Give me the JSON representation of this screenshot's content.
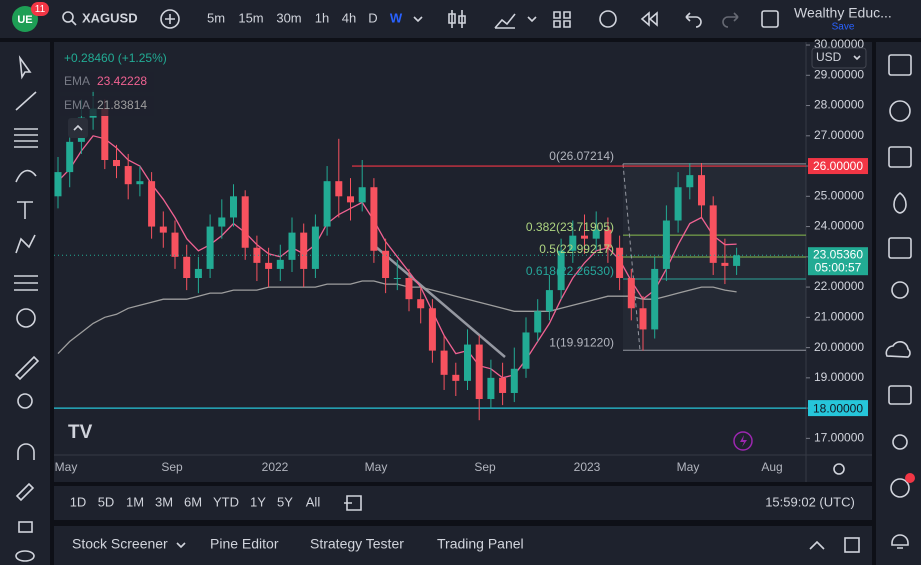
{
  "toolbar": {
    "badge": "11",
    "symbol": "XAGUSD",
    "intervals": [
      "5m",
      "15m",
      "30m",
      "1h",
      "4h",
      "D",
      "W"
    ],
    "layout_name": "Wealthy Educ...",
    "save": "Save"
  },
  "legend": {
    "change": "+0.28460 (+1.25%)",
    "indicators": [
      {
        "name": "EMA",
        "value": "23.42228"
      },
      {
        "name": "EMA",
        "value": "21.83814"
      }
    ]
  },
  "chart_data": {
    "type": "candlestick",
    "currency": "USD",
    "up_color": "#22ab94",
    "down_color": "#f7525f",
    "ylim": [
      16.45,
      30.1
    ],
    "yticks": [
      {
        "value": 17,
        "label": "17.00000"
      },
      {
        "value": 18,
        "label": "18.00000"
      },
      {
        "value": 19,
        "label": "19.00000"
      },
      {
        "value": 20,
        "label": "20.00000"
      },
      {
        "value": 21,
        "label": "21.00000"
      },
      {
        "value": 22,
        "label": "22.00000"
      },
      {
        "value": 23,
        "label": "23.00000"
      },
      {
        "value": 24,
        "label": "24.00000"
      },
      {
        "value": 25,
        "label": "25.00000"
      },
      {
        "value": 26,
        "label": "26.00000"
      },
      {
        "value": 27,
        "label": "27.00000"
      },
      {
        "value": 28,
        "label": "28.00000"
      },
      {
        "value": 29,
        "label": "29.00000"
      },
      {
        "value": 30,
        "label": "30.00000"
      }
    ],
    "x_labels": [
      "May",
      "Sep",
      "2022",
      "May",
      "Sep",
      "2023",
      "May",
      "Aug"
    ],
    "open": [
      25.0,
      25.8,
      26.8,
      27.6,
      27.9,
      26.2,
      26.0,
      25.4,
      25.5,
      24.0,
      23.8,
      23.0,
      22.3,
      22.6,
      24.0,
      24.3,
      25.0,
      23.3,
      22.8,
      22.6,
      22.9,
      23.8,
      22.6,
      24.0,
      25.5,
      25.0,
      24.8,
      25.3,
      23.2,
      22.3,
      22.3,
      21.6,
      21.3,
      19.9,
      19.1,
      18.9,
      20.1,
      18.3,
      19.0,
      18.5,
      19.3,
      20.5,
      21.2,
      21.9,
      23.2,
      23.7,
      23.6,
      23.9,
      23.3,
      22.3,
      21.3,
      20.6,
      22.6,
      24.2,
      25.3,
      25.7,
      24.7,
      22.8,
      22.7
    ],
    "high": [
      26.3,
      27.3,
      28.2,
      28.5,
      28.2,
      26.7,
      26.4,
      26.0,
      25.8,
      24.5,
      24.2,
      23.4,
      23.0,
      24.4,
      24.9,
      25.4,
      25.2,
      23.7,
      23.3,
      23.4,
      24.3,
      24.1,
      24.4,
      26.0,
      26.9,
      25.6,
      26.2,
      25.6,
      23.6,
      22.9,
      22.6,
      22.0,
      21.6,
      20.4,
      19.5,
      20.6,
      20.4,
      19.6,
      19.5,
      20.0,
      21.0,
      21.6,
      22.4,
      23.6,
      24.2,
      24.4,
      24.5,
      24.3,
      23.7,
      22.6,
      21.7,
      23.0,
      24.7,
      25.8,
      26.1,
      26.1,
      25.0,
      23.6,
      23.3
    ],
    "low": [
      24.6,
      25.3,
      26.4,
      27.2,
      25.9,
      25.6,
      24.9,
      25.0,
      23.6,
      23.3,
      22.6,
      21.9,
      21.8,
      22.3,
      23.6,
      24.0,
      22.9,
      22.2,
      22.0,
      22.2,
      22.5,
      22.0,
      22.3,
      23.7,
      24.3,
      24.2,
      24.5,
      22.8,
      21.8,
      21.9,
      21.2,
      20.8,
      19.5,
      18.6,
      18.4,
      18.6,
      17.6,
      18.0,
      18.1,
      18.2,
      19.0,
      20.2,
      20.9,
      21.6,
      22.8,
      23.1,
      23.2,
      22.8,
      21.9,
      20.9,
      19.9,
      20.3,
      22.2,
      23.8,
      24.9,
      24.3,
      22.4,
      22.1,
      22.4
    ],
    "close": [
      25.8,
      26.8,
      27.6,
      27.9,
      26.2,
      26.0,
      25.4,
      25.5,
      24.0,
      23.8,
      23.0,
      22.3,
      22.6,
      24.0,
      24.3,
      25.0,
      23.3,
      22.8,
      22.6,
      22.9,
      23.8,
      22.6,
      24.0,
      25.5,
      25.0,
      24.8,
      25.3,
      23.2,
      22.3,
      22.3,
      21.6,
      21.3,
      19.9,
      19.1,
      18.9,
      20.1,
      18.3,
      19.0,
      18.5,
      19.3,
      20.5,
      21.2,
      21.9,
      23.2,
      23.7,
      23.6,
      23.9,
      23.3,
      22.3,
      21.3,
      20.6,
      22.6,
      24.2,
      25.3,
      25.7,
      24.7,
      22.8,
      22.7,
      23.05
    ],
    "series": [
      {
        "name": "EMA",
        "color": "#f06292",
        "values": [
          25.5,
          25.9,
          26.5,
          27.0,
          26.9,
          26.6,
          26.2,
          26.0,
          25.4,
          24.9,
          24.3,
          23.6,
          23.2,
          23.4,
          23.7,
          24.1,
          23.8,
          23.4,
          23.1,
          23.0,
          23.3,
          23.1,
          23.4,
          24.1,
          24.4,
          24.6,
          24.8,
          24.2,
          23.5,
          23.0,
          22.5,
          22.0,
          21.2,
          20.4,
          19.8,
          19.9,
          19.4,
          19.3,
          19.0,
          19.1,
          19.6,
          20.2,
          20.8,
          21.6,
          22.3,
          22.8,
          23.2,
          23.3,
          22.9,
          22.2,
          21.6,
          21.9,
          22.6,
          23.4,
          24.1,
          24.3,
          23.7,
          23.4,
          23.42
        ]
      },
      {
        "name": "EMA",
        "color": "#9e9e9e",
        "values": [
          19.8,
          20.2,
          20.5,
          20.8,
          21.0,
          21.1,
          21.3,
          21.4,
          21.5,
          21.6,
          21.6,
          21.6,
          21.7,
          21.8,
          21.8,
          21.9,
          21.9,
          21.9,
          22.0,
          22.0,
          22.0,
          22.0,
          22.0,
          22.1,
          22.1,
          22.1,
          22.2,
          22.2,
          22.1,
          22.1,
          22.0,
          22.0,
          21.9,
          21.8,
          21.7,
          21.6,
          21.5,
          21.4,
          21.3,
          21.2,
          21.2,
          21.2,
          21.2,
          21.3,
          21.4,
          21.5,
          21.6,
          21.7,
          21.7,
          21.7,
          21.6,
          21.6,
          21.7,
          21.8,
          21.9,
          22.0,
          22.0,
          21.9,
          21.84
        ]
      }
    ],
    "hlines": [
      {
        "value": 26,
        "label": "26.00000",
        "color": "#f23645"
      },
      {
        "value": 18,
        "label": "18.00000",
        "color": "#26c6da"
      }
    ],
    "current_price": {
      "value": 23.0536,
      "label": "23.05360",
      "countdown": "05:00:57"
    },
    "fib_levels": [
      {
        "value": 26.07214,
        "label": "0(26.07214)"
      },
      {
        "value": 23.71905,
        "label": "0.382(23.71905)"
      },
      {
        "value": 22.99217,
        "label": "0.5(22.99217)"
      },
      {
        "value": 22.2653,
        "label": "0.618(22.26530)"
      },
      {
        "value": 19.9122,
        "label": "1(19.91220)"
      }
    ]
  },
  "range_bar": {
    "ranges": [
      "1D",
      "5D",
      "1M",
      "3M",
      "6M",
      "YTD",
      "1Y",
      "5Y",
      "All"
    ],
    "time": "15:59:02 (UTC)"
  },
  "bottom_panel": {
    "tabs": [
      "Stock Screener",
      "Pine Editor",
      "Strategy Tester",
      "Trading Panel"
    ]
  }
}
